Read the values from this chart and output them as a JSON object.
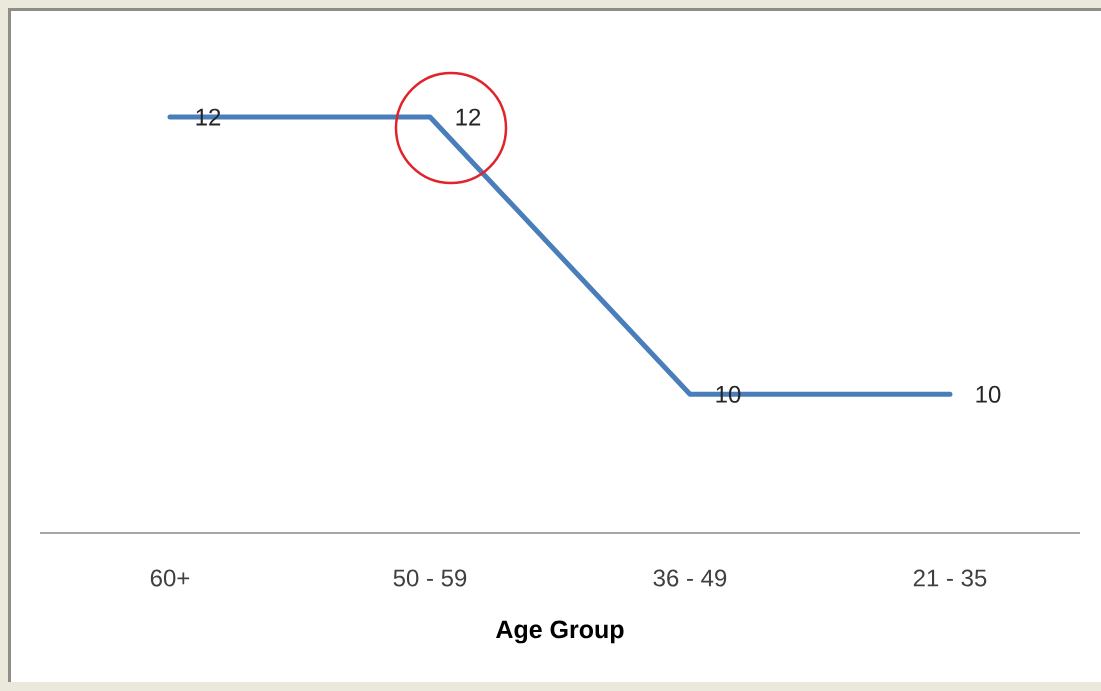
{
  "chart_data": {
    "type": "line",
    "xlabel": "Age Group",
    "categories": [
      "60+",
      "50 - 59",
      "36 - 49",
      "21 - 35"
    ],
    "series": [
      {
        "color": "#4a7ebb",
        "values": [
          12,
          12,
          10,
          10
        ]
      }
    ],
    "data_labels": true,
    "tick_labels": "x",
    "line_style": "solid",
    "marker": "none"
  }
}
